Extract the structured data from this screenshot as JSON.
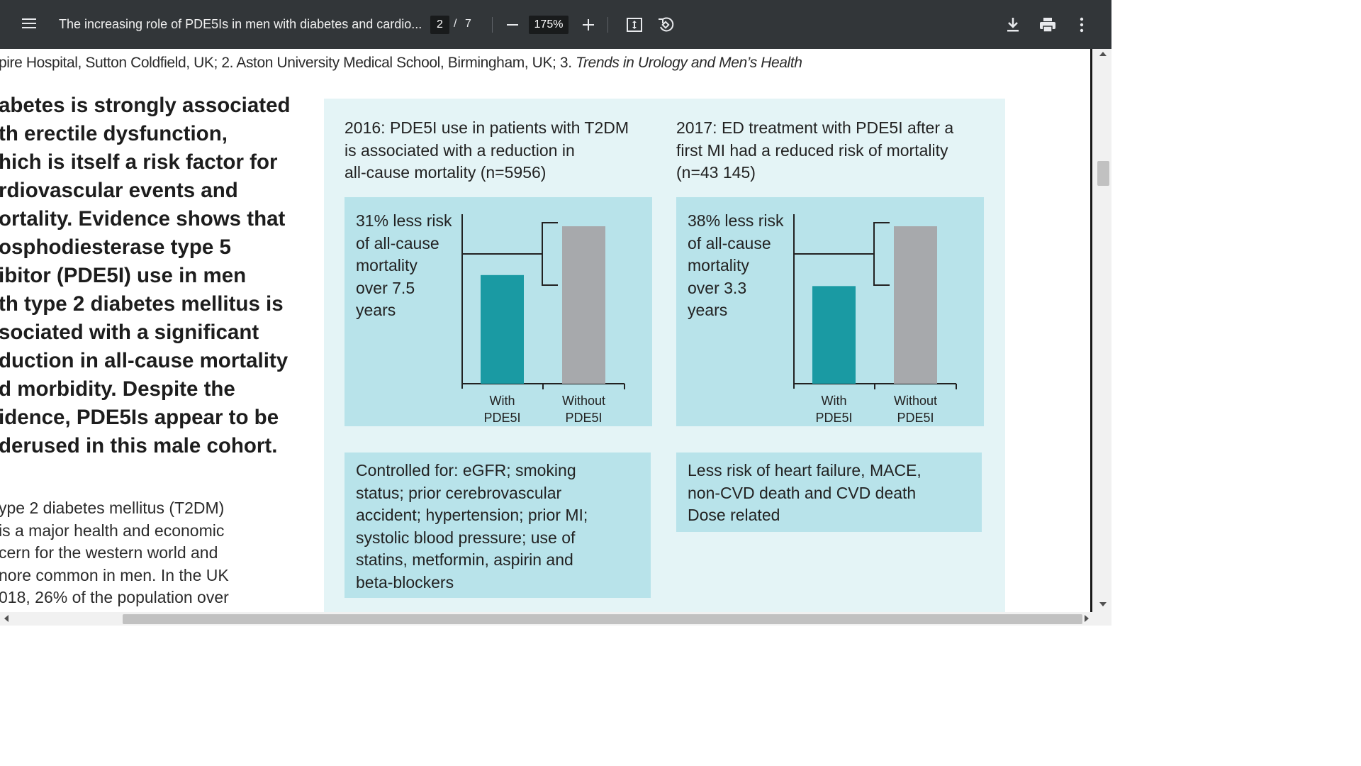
{
  "toolbar": {
    "title": "The increasing role of PDE5Is in men with diabetes and cardio...",
    "page_current": "2",
    "page_separator": "/",
    "page_total": "7",
    "zoom": "175%",
    "icons": [
      "menu-icon",
      "zoom-out-icon",
      "zoom-in-icon",
      "fit-page-icon",
      "rotate-icon",
      "download-icon",
      "print-icon",
      "more-options-icon"
    ]
  },
  "document": {
    "affiliation": "pire Hospital, Sutton Coldfield, UK; 2. Aston University Medical School, Birmingham, UK; 3. ",
    "affiliation_journal": "Trends in Urology and Men’s Health",
    "bold_lines": [
      "abetes is strongly associated",
      "th erectile dysfunction,",
      "hich is itself a risk factor for",
      "rdiovascular events and",
      "ortality. Evidence shows that",
      "osphodiesterase type 5",
      "ibitor (PDE5I) use in men",
      "th type 2 diabetes mellitus is",
      "sociated with a significant",
      "duction in all-cause mortality",
      "d morbidity. Despite the",
      "idence, PDE5Is appear to be",
      "derused in this male cohort."
    ],
    "body_lines": [
      "ype 2 diabetes mellitus (T2DM)",
      "is a major health and economic",
      "cern for the western world and",
      "nore common in men. In the UK",
      "018, 26% of the population over"
    ]
  },
  "figure": {
    "left_heading": [
      "2016: PDE5I use in patients with T2DM",
      " is associated with a reduction in",
      " all-cause mortality (n=5956)"
    ],
    "right_heading": [
      "2017: ED treatment with PDE5I after a",
      " first MI had a reduced risk of mortality",
      " (n=43 145)"
    ],
    "left_risk": [
      "31% less risk",
      " of all-cause",
      " mortality",
      " over 7.5",
      " years"
    ],
    "right_risk": [
      "38% less risk",
      " of all-cause",
      " mortality",
      " over 3.3",
      " years"
    ],
    "left_note": [
      "Controlled for: eGFR; smoking",
      " status; prior cerebrovascular",
      " accident; hypertension; prior MI;",
      " systolic blood pressure; use of",
      " statins, metformin, aspirin and",
      " beta-blockers"
    ],
    "right_note": [
      "Less risk of heart failure, MACE,",
      " non-CVD death and CVD death",
      "Dose related"
    ],
    "colors": {
      "with": "#1a9aa3",
      "without": "#a7a9ac",
      "box": "#b8e3ea",
      "panel": "#e4f4f6"
    }
  },
  "chart_data": [
    {
      "type": "bar",
      "categories": [
        "With PDE5I",
        "Without PDE5I"
      ],
      "values": [
        69,
        100
      ],
      "ylim": [
        0,
        100
      ]
    },
    {
      "type": "bar",
      "categories": [
        "With PDE5I",
        "Without PDE5I"
      ],
      "values": [
        62,
        100
      ],
      "ylim": [
        0,
        100
      ]
    }
  ]
}
